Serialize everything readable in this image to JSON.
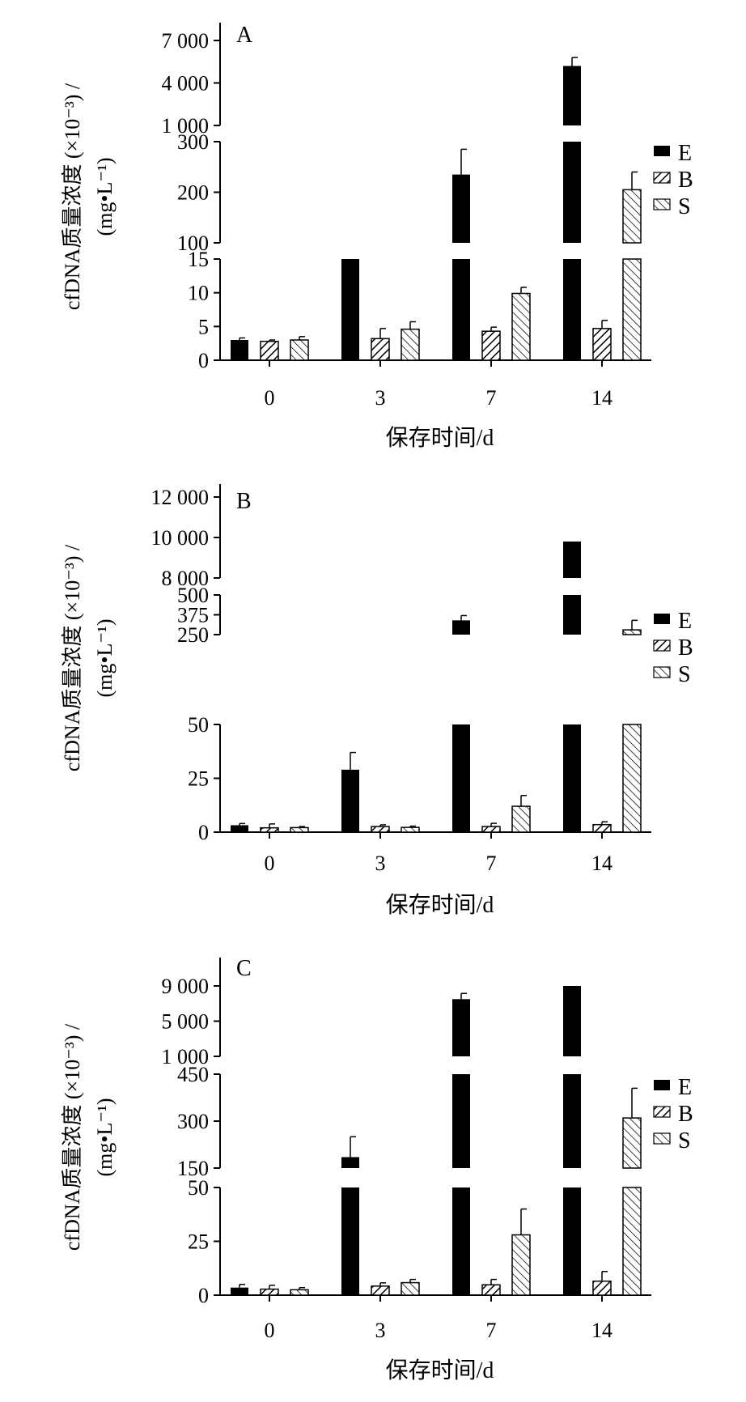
{
  "chart_data": [
    {
      "type": "bar",
      "panel_label": "A",
      "categories": [
        "0",
        "3",
        "7",
        "14"
      ],
      "xlabel": "保存时间/d",
      "ylabel_line1": "cfDNA质量浓度 (×10⁻³) /",
      "ylabel_line2": "(mg•L⁻¹)",
      "broken_axis": true,
      "segments": [
        {
          "ylim": [
            0,
            15
          ],
          "ticks": [
            0,
            5,
            10,
            15
          ]
        },
        {
          "ylim": [
            100,
            300
          ],
          "ticks": [
            100,
            200,
            300
          ]
        },
        {
          "ylim": [
            1000,
            7000
          ],
          "ticks": [
            1000,
            4000,
            7000
          ]
        }
      ],
      "tick_labels": {
        "0": "0",
        "5": "5",
        "10": "10",
        "15": "15",
        "100": "100",
        "200": "200",
        "300": "300",
        "1000": "1 000",
        "4000": "4 000",
        "7000": "7 000"
      },
      "legend": [
        "E",
        "B",
        "S"
      ],
      "legend_position": "right",
      "series": [
        {
          "name": "E",
          "values": [
            3.0,
            15,
            235,
            5200
          ],
          "errors": [
            0.3,
            0,
            50,
            600
          ]
        },
        {
          "name": "B",
          "values": [
            2.8,
            3.2,
            4.3,
            4.7
          ],
          "errors": [
            0.2,
            1.5,
            0.6,
            1.2
          ]
        },
        {
          "name": "S",
          "values": [
            3.0,
            4.6,
            9.9,
            205
          ],
          "errors": [
            0.5,
            1.1,
            0.9,
            35
          ]
        }
      ]
    },
    {
      "type": "bar",
      "panel_label": "B",
      "categories": [
        "0",
        "3",
        "7",
        "14"
      ],
      "xlabel": "保存时间/d",
      "ylabel_line1": "cfDNA质量浓度 (×10⁻³) /",
      "ylabel_line2": "(mg•L⁻¹)",
      "broken_axis": true,
      "segments": [
        {
          "ylim": [
            0,
            50
          ],
          "ticks": [
            0,
            25,
            50
          ]
        },
        {
          "ylim": [
            250,
            500
          ],
          "ticks": [
            250,
            375,
            500
          ]
        },
        {
          "ylim": [
            8000,
            12000
          ],
          "ticks": [
            8000,
            10000,
            12000
          ]
        }
      ],
      "tick_labels": {
        "0": "0",
        "25": "25",
        "50": "50",
        "250": "250",
        "375": "375",
        "500": "500",
        "8000": "8 000",
        "10000": "10 000",
        "12000": "12 000"
      },
      "legend": [
        "E",
        "B",
        "S"
      ],
      "legend_position": "right",
      "series": [
        {
          "name": "E",
          "values": [
            3.2,
            29,
            340,
            9800
          ],
          "errors": [
            0.8,
            8,
            30,
            0
          ]
        },
        {
          "name": "B",
          "values": [
            2.0,
            2.6,
            2.6,
            3.5
          ],
          "errors": [
            1.8,
            0.8,
            1.5,
            1.3
          ]
        },
        {
          "name": "S",
          "values": [
            2.1,
            2.2,
            12,
            280
          ],
          "errors": [
            0.5,
            0.6,
            5,
            60
          ]
        }
      ]
    },
    {
      "type": "bar",
      "panel_label": "C",
      "categories": [
        "0",
        "3",
        "7",
        "14"
      ],
      "xlabel": "保存时间/d",
      "ylabel_line1": "cfDNA质量浓度 (×10⁻³) /",
      "ylabel_line2": "(mg•L⁻¹)",
      "broken_axis": true,
      "segments": [
        {
          "ylim": [
            0,
            50
          ],
          "ticks": [
            0,
            25,
            50
          ]
        },
        {
          "ylim": [
            150,
            450
          ],
          "ticks": [
            150,
            300,
            450
          ]
        },
        {
          "ylim": [
            1000,
            9000
          ],
          "ticks": [
            1000,
            5000,
            9000
          ]
        }
      ],
      "tick_labels": {
        "0": "0",
        "25": "25",
        "50": "50",
        "150": "150",
        "300": "300",
        "450": "450",
        "1000": "1 000",
        "5000": "5 000",
        "9000": "9 000"
      },
      "legend": [
        "E",
        "B",
        "S"
      ],
      "legend_position": "right",
      "series": [
        {
          "name": "E",
          "values": [
            3.5,
            185,
            7500,
            9200
          ],
          "errors": [
            1.5,
            65,
            650,
            0
          ]
        },
        {
          "name": "B",
          "values": [
            2.8,
            4.2,
            4.8,
            6.5
          ],
          "errors": [
            1.8,
            1.5,
            2.5,
            4.5
          ]
        },
        {
          "name": "S",
          "values": [
            2.5,
            5.8,
            28,
            310
          ],
          "errors": [
            1.0,
            1.5,
            12,
            95
          ]
        }
      ]
    }
  ]
}
